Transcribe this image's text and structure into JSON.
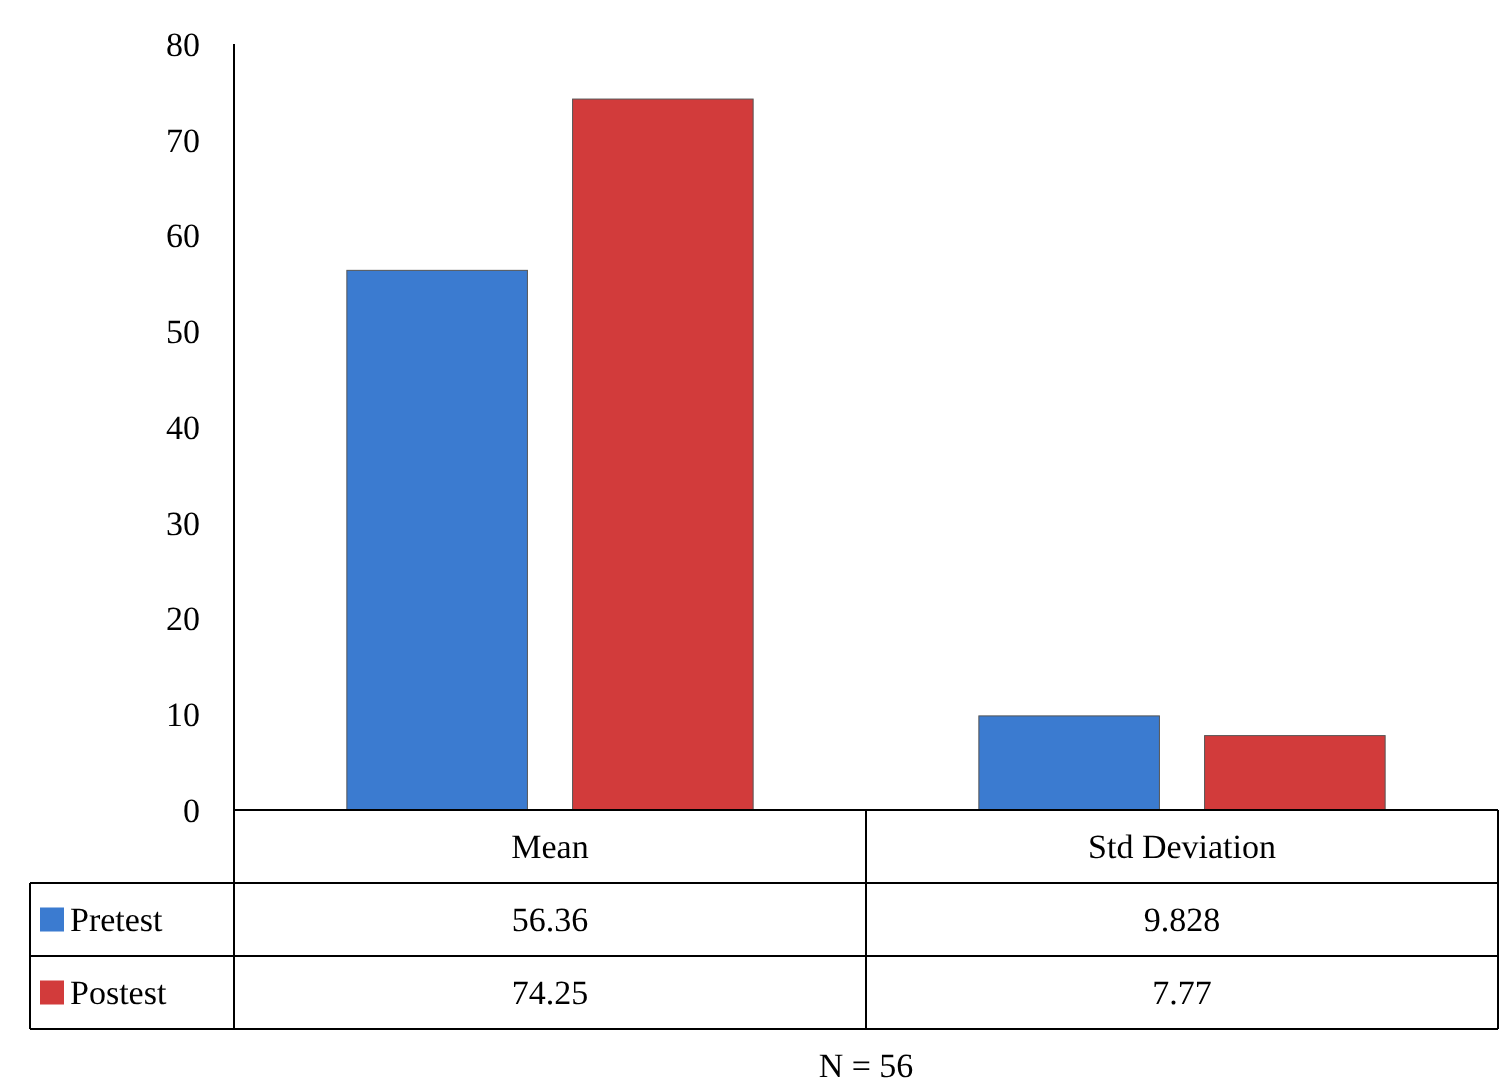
{
  "chart_data": {
    "type": "bar",
    "categories": [
      "Mean",
      "Std Deviation"
    ],
    "series": [
      {
        "name": "Pretest",
        "color": "#3b7bd0",
        "values": [
          56.36,
          9.828
        ]
      },
      {
        "name": "Postest",
        "color": "#d23b3b",
        "values": [
          74.25,
          7.77
        ]
      }
    ],
    "value_labels": [
      [
        "56.36",
        "9.828"
      ],
      [
        "74.25",
        "7.77"
      ]
    ],
    "ylim": [
      0,
      80
    ],
    "yticks": [
      0,
      10,
      20,
      30,
      40,
      50,
      60,
      70,
      80
    ],
    "legend": "bottom left",
    "annotations": [
      "N = 56"
    ]
  }
}
